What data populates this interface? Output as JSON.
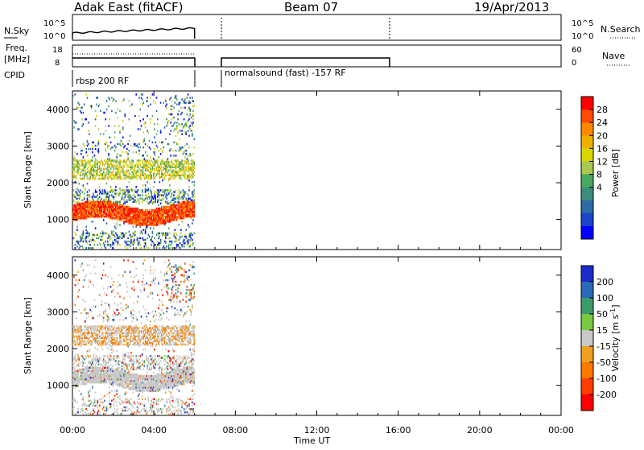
{
  "header": {
    "station": "Adak East (fitACF)",
    "beam": "Beam 07",
    "date": "19/Apr/2013"
  },
  "labels": {
    "nsky": "N.Sky",
    "nsky_top": "10^5",
    "nsky_bot": "10^0",
    "nsearch": "N.Search",
    "nsearch_top": "10^5",
    "nsearch_bot": "10^0",
    "freq_line1": "Freq.",
    "freq_line2": "[MHz]",
    "freq_top": "18",
    "freq_bot": "8",
    "nave": "Nave",
    "nave_top": "60",
    "nave_bot": "0",
    "cpid": "CPID",
    "cpid1": "rbsp 200 RF",
    "cpid2": "normalsound (fast) -157 RF"
  },
  "chart_data": [
    {
      "type": "heatmap",
      "name": "power",
      "xlabel": "",
      "ylabel": "Slant Range [km]",
      "yticks": [
        1000,
        2000,
        3000,
        4000
      ],
      "ylim": [
        180,
        4500
      ],
      "xlim": [
        0,
        24
      ],
      "data_extent_hours": [
        0,
        6
      ],
      "colorbar": {
        "label": "Power [dB]",
        "ticks": [
          "28",
          "24",
          "20",
          "16",
          "12",
          "8",
          "4"
        ],
        "colors": [
          "#ff0000",
          "#ff4a00",
          "#ff8800",
          "#f0b000",
          "#d8d800",
          "#a8c850",
          "#48a860",
          "#3c8c7c",
          "#2c6aa8",
          "#1c44c8",
          "#0000ff"
        ]
      }
    },
    {
      "type": "heatmap",
      "name": "velocity",
      "xlabel": "Time UT",
      "ylabel": "Slant Range [km]",
      "yticks": [
        1000,
        2000,
        3000,
        4000
      ],
      "ylim": [
        180,
        4500
      ],
      "xlim": [
        0,
        24
      ],
      "data_extent_hours": [
        0,
        6
      ],
      "xtick_labels": [
        "00:00",
        "04:00",
        "08:00",
        "12:00",
        "16:00",
        "20:00",
        "00:00"
      ],
      "colorbar": {
        "label": "Velocity [m s^-1]",
        "ticks": [
          "200",
          "100",
          "50",
          "15",
          "-15",
          "-50",
          "-100",
          "-200"
        ],
        "colors": [
          "#1c2cc8",
          "#2a6ab8",
          "#3c9a6a",
          "#7ac840",
          "#c8c8c8",
          "#f0a020",
          "#ff7800",
          "#ff3c00",
          "#ff0000"
        ]
      }
    }
  ]
}
